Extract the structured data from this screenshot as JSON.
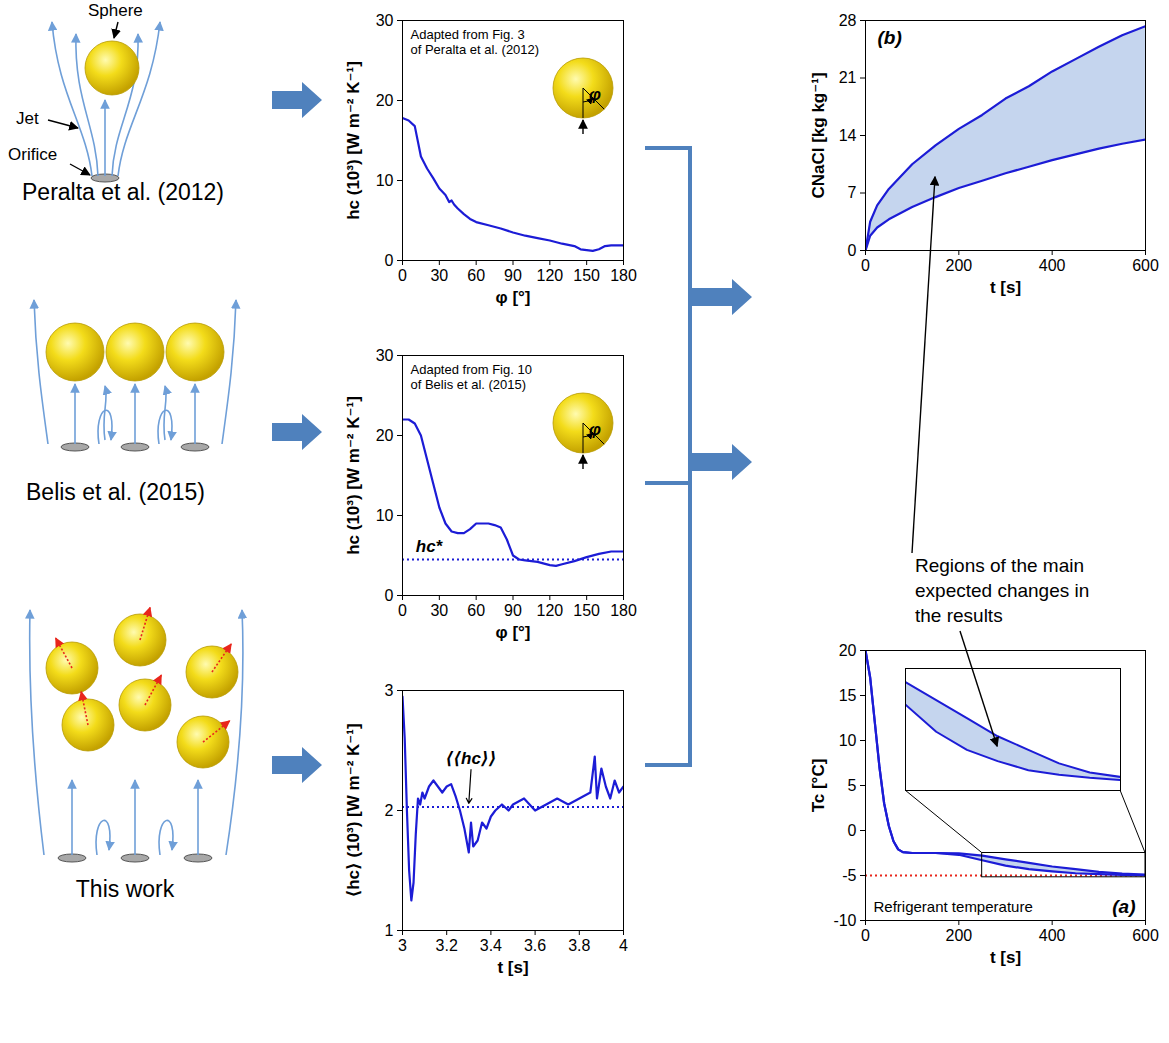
{
  "chart_data": [
    {
      "type": "line",
      "annotation": [
        "Adapted from Fig. 3",
        "of Peralta et al. (2012)"
      ],
      "inset_label": "φ",
      "x_label": "φ [°]",
      "y_label": "hc (10³) [W m⁻² K⁻¹]",
      "x": [
        0,
        5,
        10,
        15,
        20,
        25,
        30,
        35,
        38,
        40,
        42,
        45,
        50,
        55,
        60,
        70,
        80,
        90,
        100,
        110,
        120,
        130,
        140,
        145,
        150,
        155,
        160,
        165,
        170,
        180
      ],
      "series": [
        {
          "color": "#1c1cd6",
          "values": [
            17.8,
            17.5,
            16.8,
            13,
            11.5,
            10.3,
            9,
            8.2,
            7.3,
            7.5,
            7,
            6.5,
            5.8,
            5.2,
            4.8,
            4.4,
            4,
            3.5,
            3.1,
            2.8,
            2.5,
            2.1,
            1.8,
            1.4,
            1.3,
            1.2,
            1.4,
            1.8,
            1.9,
            1.9
          ]
        }
      ],
      "xlim": [
        0,
        180
      ],
      "xticks": [
        0,
        30,
        60,
        90,
        120,
        150,
        180
      ],
      "ylim": [
        0,
        30
      ],
      "yticks": [
        0,
        10,
        20,
        30
      ]
    },
    {
      "type": "line",
      "annotation": [
        "Adapted from Fig. 10",
        "of Belis et al. (2015)"
      ],
      "inset_label": "φ",
      "x_label": "φ [°]",
      "y_label": "hc (10³) [W m⁻² K⁻¹]",
      "x": [
        0,
        5,
        10,
        15,
        20,
        25,
        30,
        35,
        40,
        45,
        50,
        55,
        60,
        65,
        70,
        75,
        80,
        85,
        90,
        95,
        100,
        110,
        120,
        125,
        130,
        140,
        150,
        160,
        170,
        180
      ],
      "series": [
        {
          "color": "#1c1cd6",
          "values": [
            22,
            22,
            21.5,
            20,
            17,
            14,
            11,
            9,
            8,
            7.8,
            7.8,
            8.3,
            9,
            9,
            9,
            8.8,
            8.5,
            7,
            5,
            4.5,
            4.4,
            4.2,
            3.8,
            3.7,
            3.9,
            4.3,
            4.8,
            5.2,
            5.5,
            5.5
          ]
        }
      ],
      "hlines": [
        {
          "value": 4.5,
          "label": "hc*",
          "color": "#1c1cd6",
          "line_style": "dotted"
        }
      ],
      "xlim": [
        0,
        180
      ],
      "xticks": [
        0,
        30,
        60,
        90,
        120,
        150,
        180
      ],
      "ylim": [
        0,
        30
      ],
      "yticks": [
        0,
        10,
        20,
        30
      ]
    },
    {
      "type": "line",
      "x_label": "t [s]",
      "y_label": "⟨hc⟩ (10³) [W m⁻² K⁻¹]",
      "x": [
        3,
        3.01,
        3.02,
        3.03,
        3.04,
        3.05,
        3.06,
        3.07,
        3.08,
        3.09,
        3.1,
        3.12,
        3.14,
        3.16,
        3.18,
        3.2,
        3.22,
        3.24,
        3.26,
        3.28,
        3.3,
        3.31,
        3.32,
        3.34,
        3.36,
        3.38,
        3.4,
        3.42,
        3.45,
        3.48,
        3.5,
        3.55,
        3.6,
        3.65,
        3.7,
        3.75,
        3.8,
        3.85,
        3.87,
        3.88,
        3.9,
        3.92,
        3.94,
        3.96,
        3.98,
        4
      ],
      "series": [
        {
          "color": "#1c1cd6",
          "values": [
            2.95,
            2.6,
            2.0,
            1.5,
            1.25,
            1.4,
            1.8,
            2.1,
            2.05,
            2.15,
            2.1,
            2.2,
            2.25,
            2.2,
            2.15,
            2.2,
            2.22,
            2.12,
            2.0,
            1.85,
            1.65,
            1.9,
            1.7,
            1.75,
            1.9,
            1.85,
            1.95,
            2.0,
            2.05,
            2.0,
            2.05,
            2.1,
            2.0,
            2.05,
            2.1,
            2.05,
            2.1,
            2.15,
            2.45,
            2.1,
            2.35,
            2.2,
            2.1,
            2.25,
            2.15,
            2.2
          ]
        }
      ],
      "hlines": [
        {
          "value": 2.03,
          "label": "⟨⟨hc⟩⟩",
          "color": "#1c1cd6",
          "line_style": "dotted"
        }
      ],
      "xlim": [
        3,
        4
      ],
      "xticks": [
        3,
        3.2,
        3.4,
        3.6,
        3.8,
        4
      ],
      "ylim": [
        1,
        3
      ],
      "yticks": [
        1,
        2,
        3
      ]
    },
    {
      "type": "band",
      "panel_label": "(b)",
      "x_label": "t [s]",
      "y_label": "CNaCl [kg kg⁻¹]",
      "color": "#c5d5ee",
      "x": [
        0,
        10,
        25,
        50,
        100,
        150,
        200,
        250,
        300,
        350,
        400,
        450,
        500,
        550,
        600
      ],
      "series": [
        {
          "color": "#1c1cd6",
          "values": [
            0,
            3.5,
            5.5,
            7.5,
            10.5,
            12.8,
            14.8,
            16.5,
            18.5,
            20,
            21.8,
            23.3,
            24.8,
            26.2,
            27.3
          ]
        },
        {
          "color": "#1c1cd6",
          "values": [
            0,
            1.8,
            2.8,
            3.8,
            5.3,
            6.5,
            7.6,
            8.5,
            9.4,
            10.2,
            11,
            11.7,
            12.4,
            13,
            13.5
          ]
        }
      ],
      "xlim": [
        0,
        600
      ],
      "xticks": [
        0,
        200,
        400,
        600
      ],
      "ylim": [
        0,
        28
      ],
      "yticks": [
        0,
        7,
        14,
        21,
        28
      ]
    },
    {
      "type": "band",
      "panel_label": "(a)",
      "x_label": "t [s]",
      "y_label": "Tc [°C]",
      "color": "#c5d5ee",
      "x": [
        0,
        10,
        20,
        30,
        40,
        50,
        60,
        70,
        80,
        100,
        150,
        200,
        250,
        300,
        350,
        400,
        450,
        500,
        550,
        600
      ],
      "series": [
        {
          "color": "#1c1cd6",
          "values": [
            20,
            17,
            12,
            7,
            3,
            0.5,
            -1.2,
            -2.1,
            -2.4,
            -2.5,
            -2.5,
            -2.55,
            -2.8,
            -3.2,
            -3.6,
            -4.0,
            -4.3,
            -4.6,
            -4.8,
            -4.9
          ]
        },
        {
          "color": "#1c1cd6",
          "values": [
            20,
            17,
            12,
            7,
            3,
            0.5,
            -1.2,
            -2.1,
            -2.4,
            -2.5,
            -2.5,
            -2.7,
            -3.3,
            -3.9,
            -4.3,
            -4.55,
            -4.75,
            -4.85,
            -4.92,
            -4.97
          ]
        }
      ],
      "hlines": [
        {
          "value": -5,
          "label": "Refrigerant temperature",
          "color": "#e8261c",
          "line_style": "dotted"
        }
      ],
      "inset": {
        "xlim": [
          250,
          600
        ],
        "ylim": [
          -5.2,
          -2.5
        ],
        "tick_labels": false
      },
      "xlim": [
        0,
        600
      ],
      "xticks": [
        0,
        200,
        400,
        600
      ],
      "ylim": [
        -10,
        20
      ],
      "yticks": [
        -10,
        -5,
        0,
        5,
        10,
        15,
        20
      ]
    }
  ],
  "diagram": {
    "studies": [
      "Peralta et al. (2012)",
      "Belis et al. (2015)",
      "This work"
    ],
    "labels": {
      "sphere": "Sphere",
      "jet": "Jet",
      "orifice": "Orifice"
    },
    "note": "Regions of the main expected changes in the results"
  }
}
